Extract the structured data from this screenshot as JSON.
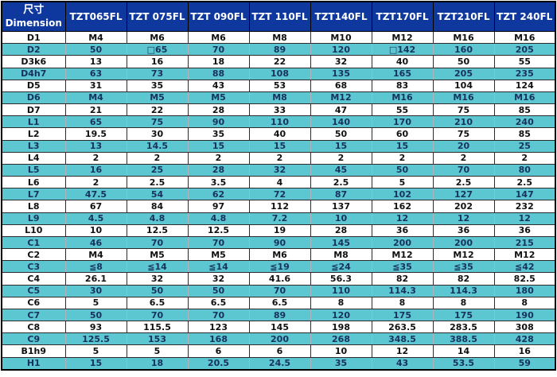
{
  "table": {
    "header": {
      "dimension_label_cn": "尺寸",
      "dimension_label_en": "Dimension",
      "columns": [
        "TZT065FL",
        "TZT 075FL",
        "TZT 090FL",
        "TZT 110FL",
        "TZT140FL",
        "TZT170FL",
        "TZT210FL",
        "TZT 240FL"
      ]
    },
    "rows": [
      {
        "label": "D1",
        "values": [
          "M4",
          "M6",
          "M6",
          "M8",
          "M10",
          "M12",
          "M16",
          "M16"
        ]
      },
      {
        "label": "D2",
        "values": [
          "50",
          "□65",
          "70",
          "89",
          "120",
          "□142",
          "160",
          "205"
        ]
      },
      {
        "label": "D3k6",
        "values": [
          "13",
          "16",
          "18",
          "22",
          "32",
          "40",
          "50",
          "55"
        ]
      },
      {
        "label": "D4h7",
        "values": [
          "63",
          "73",
          "88",
          "108",
          "135",
          "165",
          "205",
          "235"
        ]
      },
      {
        "label": "D5",
        "values": [
          "31",
          "35",
          "43",
          "53",
          "68",
          "83",
          "104",
          "124"
        ]
      },
      {
        "label": "D6",
        "values": [
          "M4",
          "M5",
          "M5",
          "M8",
          "M12",
          "M16",
          "M16",
          "M16"
        ]
      },
      {
        "label": "D7",
        "values": [
          "21",
          "22",
          "28",
          "33",
          "47",
          "55",
          "75",
          "85"
        ]
      },
      {
        "label": "L1",
        "values": [
          "65",
          "75",
          "90",
          "110",
          "140",
          "170",
          "210",
          "240"
        ]
      },
      {
        "label": "L2",
        "values": [
          "19.5",
          "30",
          "35",
          "40",
          "50",
          "60",
          "75",
          "85"
        ]
      },
      {
        "label": "L3",
        "values": [
          "13",
          "14.5",
          "15",
          "15",
          "15",
          "15",
          "20",
          "25"
        ]
      },
      {
        "label": "L4",
        "values": [
          "2",
          "2",
          "2",
          "2",
          "2",
          "2",
          "2",
          "2"
        ]
      },
      {
        "label": "L5",
        "values": [
          "16",
          "25",
          "28",
          "32",
          "45",
          "50",
          "70",
          "80"
        ]
      },
      {
        "label": "L6",
        "values": [
          "2",
          "2.5",
          "3.5",
          "4",
          "2.5",
          "5",
          "2.5",
          "2.5"
        ]
      },
      {
        "label": "L7",
        "values": [
          "47.5",
          "54",
          "62",
          "72",
          "87",
          "102",
          "127",
          "147"
        ]
      },
      {
        "label": "L8",
        "values": [
          "67",
          "84",
          "97",
          "112",
          "137",
          "162",
          "202",
          "232"
        ]
      },
      {
        "label": "L9",
        "values": [
          "4.5",
          "4.8",
          "4.8",
          "7.2",
          "10",
          "12",
          "12",
          "12"
        ]
      },
      {
        "label": "L10",
        "values": [
          "10",
          "12.5",
          "12.5",
          "19",
          "28",
          "36",
          "36",
          "36"
        ]
      },
      {
        "label": "C1",
        "values": [
          "46",
          "70",
          "70",
          "90",
          "145",
          "200",
          "200",
          "215"
        ]
      },
      {
        "label": "C2",
        "values": [
          "M4",
          "M5",
          "M5",
          "M6",
          "M8",
          "M12",
          "M12",
          "M12"
        ]
      },
      {
        "label": "C3",
        "values": [
          "≦8",
          "≦14",
          "≦14",
          "≦19",
          "≦24",
          "≦35",
          "≦35",
          "≦42"
        ]
      },
      {
        "label": "C4",
        "values": [
          "26.1",
          "32",
          "32",
          "41.6",
          "56.3",
          "82",
          "82",
          "82.5"
        ]
      },
      {
        "label": "C5",
        "values": [
          "30",
          "50",
          "50",
          "70",
          "110",
          "114.3",
          "114.3",
          "180"
        ]
      },
      {
        "label": "C6",
        "values": [
          "5",
          "6.5",
          "6.5",
          "6.5",
          "8",
          "8",
          "8",
          "8"
        ]
      },
      {
        "label": "C7",
        "values": [
          "50",
          "70",
          "70",
          "89",
          "120",
          "175",
          "175",
          "190"
        ]
      },
      {
        "label": "C8",
        "values": [
          "93",
          "115.5",
          "123",
          "145",
          "198",
          "263.5",
          "283.5",
          "308"
        ]
      },
      {
        "label": "C9",
        "values": [
          "125.5",
          "153",
          "168",
          "200",
          "268",
          "348.5",
          "388.5",
          "428"
        ]
      },
      {
        "label": "B1h9",
        "values": [
          "5",
          "5",
          "6",
          "6",
          "10",
          "12",
          "14",
          "16"
        ]
      },
      {
        "label": "H1",
        "values": [
          "15",
          "18",
          "20.5",
          "24.5",
          "35",
          "43",
          "53.5",
          "59"
        ]
      }
    ]
  },
  "colors": {
    "header_bg": "#0e389e",
    "header_text": "#ffffff",
    "row_alt_bg": "#5cc7d1",
    "row_alt_text": "#17325e",
    "grid": "#2b2b2b"
  }
}
